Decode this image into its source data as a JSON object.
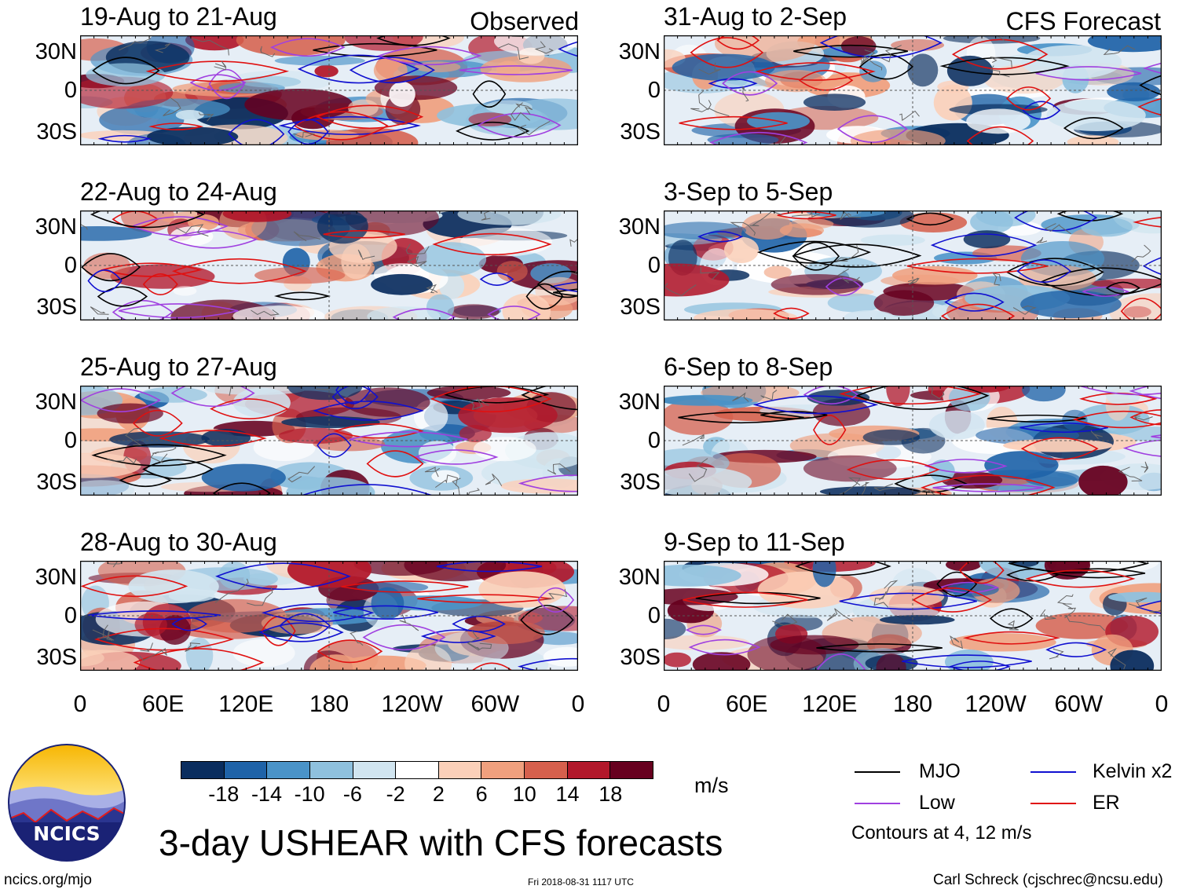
{
  "panels_left": [
    {
      "period": "19-Aug to 21-Aug",
      "tag": "Observed"
    },
    {
      "period": "22-Aug to 24-Aug",
      "tag": ""
    },
    {
      "period": "25-Aug to 27-Aug",
      "tag": ""
    },
    {
      "period": "28-Aug to 30-Aug",
      "tag": ""
    }
  ],
  "panels_right": [
    {
      "period": "31-Aug to 2-Sep",
      "tag": "CFS Forecast"
    },
    {
      "period": "3-Sep to 5-Sep",
      "tag": ""
    },
    {
      "period": "6-Sep to 8-Sep",
      "tag": ""
    },
    {
      "period": "9-Sep to 11-Sep",
      "tag": ""
    }
  ],
  "chart_data": {
    "type": "heatmap",
    "title": "3-day USHEAR with CFS forecasts",
    "variable": "USHEAR",
    "units": "m/s",
    "y_ticks": [
      "30N",
      "0",
      "30S"
    ],
    "x_ticks": [
      "0",
      "60E",
      "120E",
      "180",
      "120W",
      "60W",
      "0"
    ],
    "colorbar": {
      "labels": [
        "-18",
        "-14",
        "-10",
        "-6",
        "-2",
        "2",
        "6",
        "10",
        "14",
        "18"
      ],
      "colors": [
        "#0a2d5e",
        "#1f63a8",
        "#4a93c8",
        "#8fc1de",
        "#d1e5f0",
        "#ffffff",
        "#fbd0b9",
        "#f0a07e",
        "#d6604d",
        "#b2182b",
        "#67001f"
      ]
    },
    "contours": "Contours at 4, 12 m/s",
    "legend": [
      {
        "name": "MJO",
        "color": "#000000"
      },
      {
        "name": "Kelvin x2",
        "color": "#1010d0"
      },
      {
        "name": "Low",
        "color": "#a040e0"
      },
      {
        "name": "ER",
        "color": "#e01010"
      }
    ]
  },
  "footer": {
    "logo_text": "NCICS",
    "site": "ncics.org/mjo",
    "timestamp": "Fri 2018-08-31 1117 UTC",
    "author": "Carl Schreck (cjschrec@ncsu.edu)"
  }
}
